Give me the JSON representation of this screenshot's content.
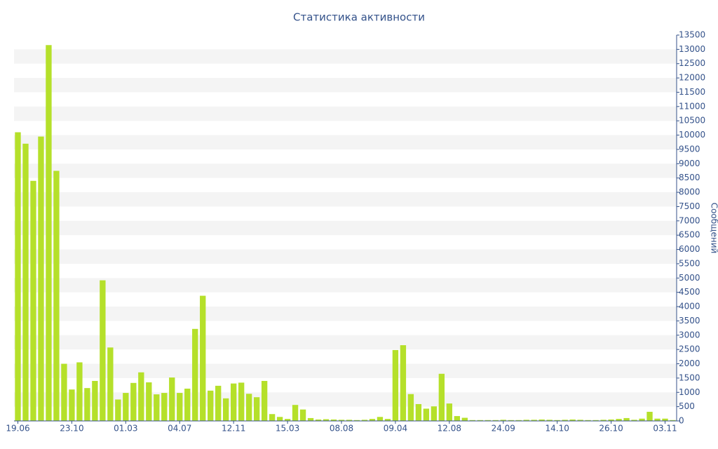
{
  "chart_data": {
    "type": "bar",
    "title": "Статистика активности",
    "y_label": "Сообщений",
    "categories": [
      "19.06",
      null,
      null,
      null,
      null,
      null,
      null,
      "23.10",
      null,
      null,
      null,
      null,
      null,
      null,
      "01.03",
      null,
      null,
      null,
      null,
      null,
      null,
      "04.07",
      null,
      null,
      null,
      null,
      null,
      null,
      "12.11",
      null,
      null,
      null,
      null,
      null,
      null,
      "15.03",
      null,
      null,
      null,
      null,
      null,
      null,
      "08.08",
      null,
      null,
      null,
      null,
      null,
      null,
      "09.04",
      null,
      null,
      null,
      null,
      null,
      null,
      "12.08",
      null,
      null,
      null,
      null,
      null,
      null,
      "24.09",
      null,
      null,
      null,
      null,
      null,
      null,
      "14.10",
      null,
      null,
      null,
      null,
      null,
      null,
      "26.10",
      null,
      null,
      null,
      null,
      null,
      null,
      "03.11",
      null
    ],
    "values": [
      10100,
      9700,
      8400,
      9950,
      13150,
      8750,
      2000,
      1100,
      2050,
      1150,
      1400,
      4920,
      2570,
      750,
      980,
      1330,
      1700,
      1350,
      930,
      980,
      1520,
      980,
      1130,
      3220,
      4380,
      1060,
      1230,
      790,
      1310,
      1340,
      950,
      830,
      1400,
      240,
      140,
      70,
      560,
      400,
      100,
      50,
      60,
      50,
      40,
      40,
      30,
      40,
      70,
      140,
      70,
      2480,
      2650,
      940,
      590,
      430,
      510,
      1650,
      610,
      170,
      110,
      30,
      30,
      30,
      30,
      40,
      30,
      30,
      40,
      40,
      50,
      40,
      30,
      40,
      50,
      40,
      30,
      30,
      40,
      50,
      70,
      100,
      40,
      80,
      320,
      80,
      80,
      30
    ],
    "color": "#b5e02a",
    "ylim": [
      0,
      13500
    ],
    "yticks": [
      0,
      500,
      1000,
      1500,
      2000,
      2500,
      3000,
      3500,
      4000,
      4500,
      5000,
      5500,
      6000,
      6500,
      7000,
      7500,
      8000,
      8500,
      9000,
      9500,
      10000,
      10500,
      11000,
      11500,
      12000,
      12500,
      13000,
      13500
    ],
    "grid": true
  }
}
